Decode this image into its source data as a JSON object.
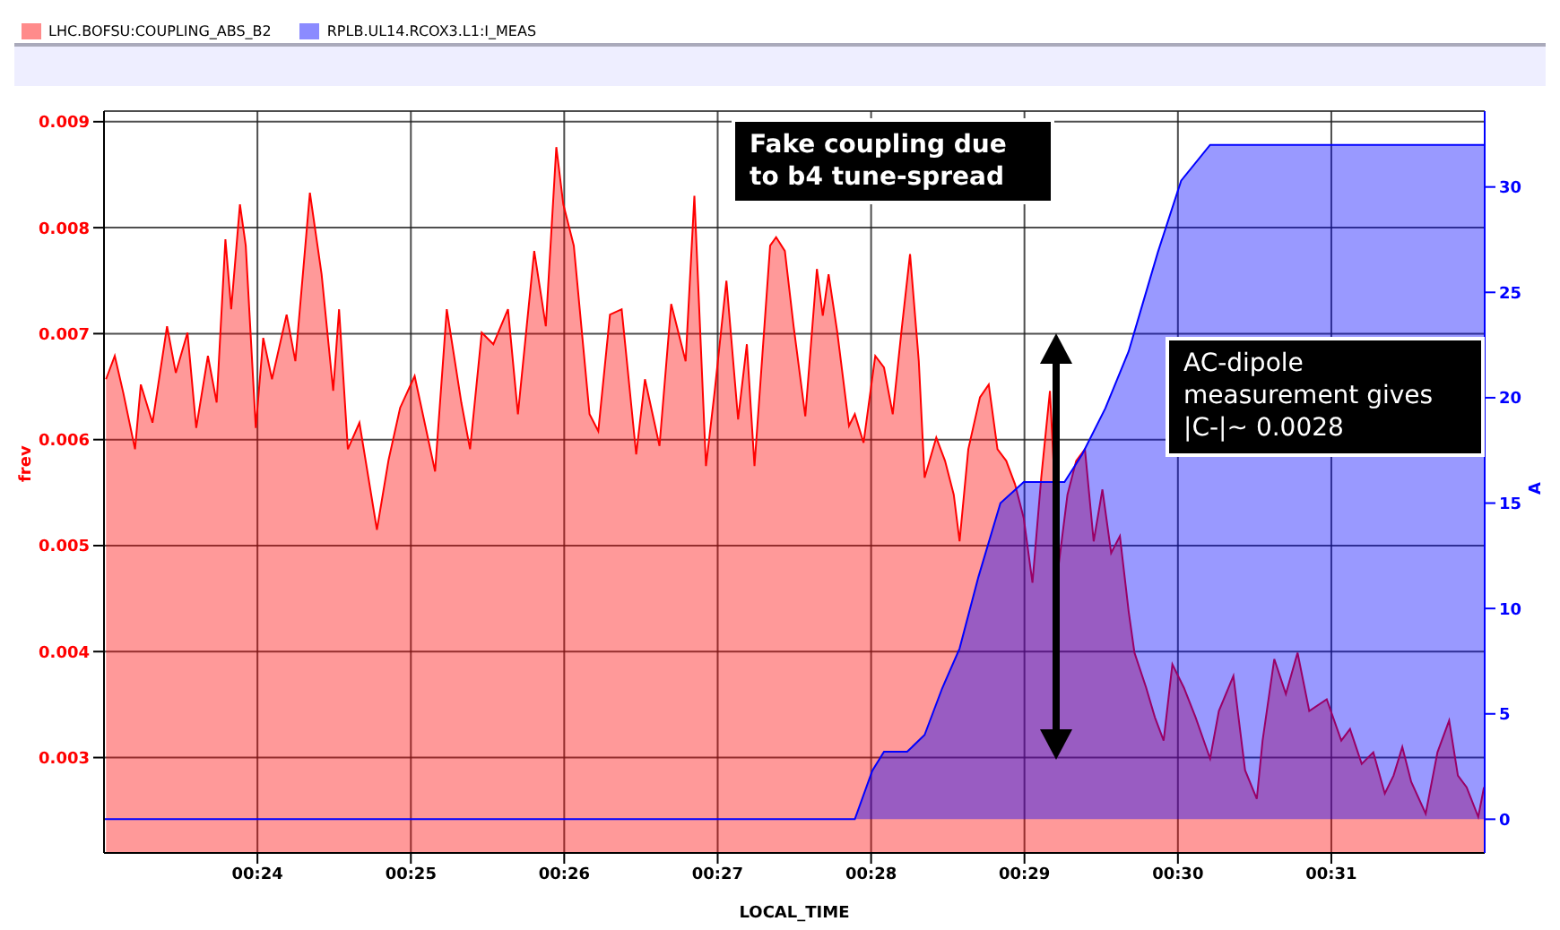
{
  "chart_data": {
    "type": "area",
    "xlabel": "LOCAL_TIME",
    "ylabel": "frev",
    "y2label": "A",
    "xlim": [
      0.38333,
      0.53333
    ],
    "xticks": [
      {
        "value": 0.4,
        "label": "00:24"
      },
      {
        "value": 0.41667,
        "label": "00:25"
      },
      {
        "value": 0.43333,
        "label": "00:26"
      },
      {
        "value": 0.45,
        "label": "00:27"
      },
      {
        "value": 0.46667,
        "label": "00:28"
      },
      {
        "value": 0.48333,
        "label": "00:29"
      },
      {
        "value": 0.5,
        "label": "00:30"
      },
      {
        "value": 0.51667,
        "label": "00:31"
      }
    ],
    "ylim": [
      0.0021,
      0.0091
    ],
    "yticks": [
      0.003,
      0.004,
      0.005,
      0.006,
      0.007,
      0.008,
      0.009
    ],
    "y2lim": [
      -1.6,
      33.6
    ],
    "y2ticks": [
      0,
      5,
      10,
      15,
      20,
      25,
      30
    ],
    "grid": true,
    "legend": "top left",
    "annotations": [
      "Fake coupling due to b4 tune-spread",
      "AC-dipole measurement gives |C-|~ 0.0028"
    ],
    "series": [
      {
        "name": "LHC.BOFSU:COUPLING_ABS_B2",
        "color": "#ff0000",
        "x": [
          0.38355,
          0.3845,
          0.38543,
          0.3867,
          0.38733,
          0.3886,
          0.39018,
          0.39113,
          0.3924,
          0.39335,
          0.39462,
          0.39557,
          0.39652,
          0.39715,
          0.3981,
          0.39873,
          0.39982,
          0.40063,
          0.40158,
          0.40317,
          0.40412,
          0.4057,
          0.40697,
          0.40823,
          0.40887,
          0.40982,
          0.41108,
          0.41298,
          0.41425,
          0.4155,
          0.41708,
          0.4193,
          0.42057,
          0.42215,
          0.4231,
          0.42437,
          0.42563,
          0.42722,
          0.4283,
          0.43007,
          0.43133,
          0.43247,
          0.43323,
          0.43437,
          0.43608,
          0.43703,
          0.4383,
          0.43957,
          0.44115,
          0.4421,
          0.44368,
          0.44495,
          0.44652,
          0.44747,
          0.44873,
          0.44968,
          0.45095,
          0.45222,
          0.45317,
          0.454,
          0.4557,
          0.45635,
          0.4573,
          0.45825,
          0.45952,
          0.46078,
          0.46142,
          0.46205,
          0.463,
          0.46427,
          0.4649,
          0.46585,
          0.46712,
          0.46807,
          0.46902,
          0.46995,
          0.4709,
          0.47185,
          0.47248,
          0.47375,
          0.4747,
          0.47565,
          0.47628,
          0.47723,
          0.4785,
          0.47945,
          0.4804,
          0.48135,
          0.4823,
          0.48325,
          0.4842,
          0.48515,
          0.4861,
          0.48705,
          0.488,
          0.48895,
          0.4899,
          0.49085,
          0.4918,
          0.49275,
          0.4937,
          0.49465,
          0.49528,
          0.49655,
          0.4975,
          0.49845,
          0.4994,
          0.50065,
          0.50192,
          0.5035,
          0.50445,
          0.50603,
          0.5073,
          0.50857,
          0.5092,
          0.51047,
          0.51173,
          0.513,
          0.51427,
          0.51617,
          0.51775,
          0.5187,
          0.51997,
          0.52123,
          0.52248,
          0.52343,
          0.52438,
          0.52535,
          0.52692,
          0.5282,
          0.52947,
          0.53042,
          0.53137,
          0.53263,
          0.53325
        ],
        "values": [
          0.00657,
          0.00679,
          0.00644,
          0.00591,
          0.00652,
          0.00616,
          0.00707,
          0.00663,
          0.00701,
          0.00611,
          0.00679,
          0.00635,
          0.00789,
          0.00723,
          0.00822,
          0.00783,
          0.00611,
          0.00696,
          0.00657,
          0.00718,
          0.00674,
          0.00833,
          0.00756,
          0.00646,
          0.00723,
          0.00591,
          0.00616,
          0.00515,
          0.00581,
          0.0063,
          0.0066,
          0.0057,
          0.00723,
          0.00635,
          0.00591,
          0.00701,
          0.0069,
          0.00723,
          0.00624,
          0.00778,
          0.00707,
          0.00876,
          0.00822,
          0.00783,
          0.00624,
          0.00608,
          0.00718,
          0.00723,
          0.00586,
          0.00657,
          0.00594,
          0.00728,
          0.00674,
          0.0083,
          0.00575,
          0.00646,
          0.0075,
          0.00619,
          0.0069,
          0.00575,
          0.00783,
          0.00791,
          0.00778,
          0.00707,
          0.00622,
          0.00761,
          0.00717,
          0.00756,
          0.00701,
          0.00613,
          0.00624,
          0.00597,
          0.00679,
          0.00668,
          0.00624,
          0.00701,
          0.00775,
          0.00674,
          0.00564,
          0.00602,
          0.0058,
          0.00548,
          0.00504,
          0.00591,
          0.0064,
          0.00652,
          0.00591,
          0.0058,
          0.00558,
          0.00526,
          0.00465,
          0.00564,
          0.00646,
          0.00482,
          0.00548,
          0.0058,
          0.00591,
          0.00504,
          0.00553,
          0.00493,
          0.00509,
          0.00438,
          0.00399,
          0.00366,
          0.00338,
          0.00316,
          0.00388,
          0.00366,
          0.00338,
          0.00299,
          0.00344,
          0.00377,
          0.00288,
          0.00261,
          0.00316,
          0.00393,
          0.0036,
          0.00399,
          0.00344,
          0.00355,
          0.00316,
          0.00327,
          0.00294,
          0.00305,
          0.00266,
          0.00283,
          0.0031,
          0.00277,
          0.00247,
          0.00305,
          0.00335,
          0.00283,
          0.00272,
          0.00244,
          0.00272
        ]
      },
      {
        "name": "RPLB.UL14.RCOX3.L1:I_MEAS",
        "color": "#0000ff",
        "axis": "y2",
        "x": [
          0.38333,
          0.4649,
          0.4668,
          0.46807,
          0.47058,
          0.47248,
          0.47438,
          0.47628,
          0.47833,
          0.48072,
          0.48325,
          0.48768,
          0.48958,
          0.49212,
          0.49465,
          0.49782,
          0.50035,
          0.5035,
          0.53325
        ],
        "values": [
          0,
          0,
          2.3,
          3.2,
          3.2,
          4.0,
          6.2,
          8.1,
          11.5,
          15.0,
          16.0,
          16.0,
          17.3,
          19.5,
          22.2,
          26.9,
          30.3,
          32.0,
          32.0
        ]
      }
    ]
  }
}
